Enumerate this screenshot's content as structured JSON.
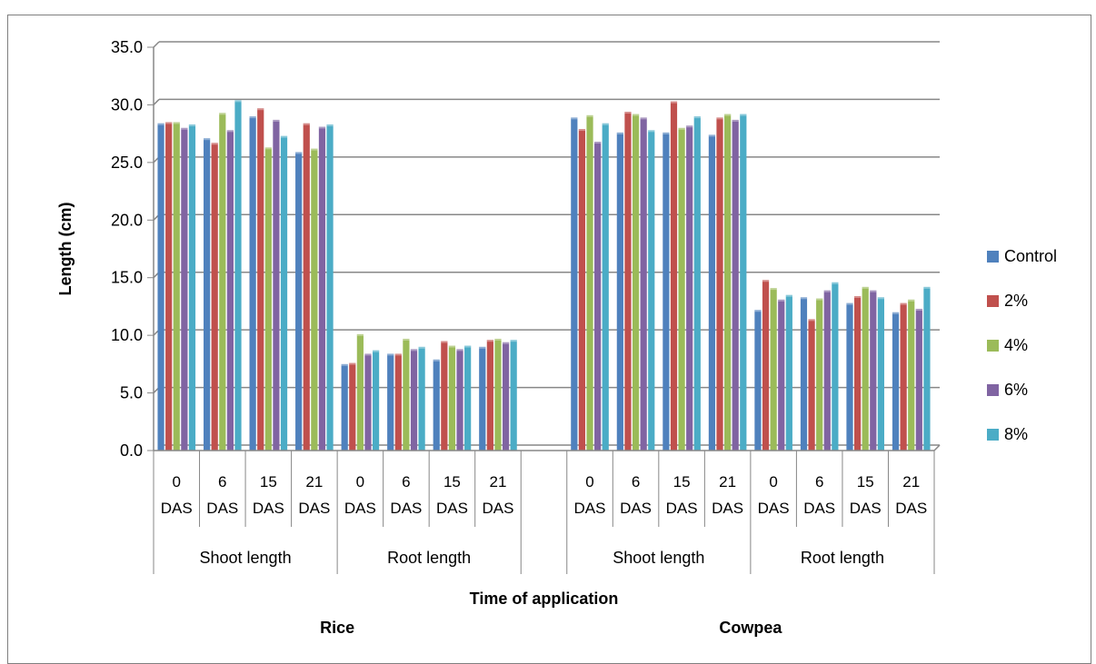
{
  "chart_data": {
    "type": "bar",
    "xlabel": "Time of application",
    "ylabel": "Length (cm)",
    "ylim": [
      0,
      35
    ],
    "ytick_step": 5,
    "ytick_labels": [
      "0.0",
      "5.0",
      "10.0",
      "15.0",
      "20.0",
      "25.0",
      "30.0",
      "35.0"
    ],
    "grid": true,
    "legend_position": "right",
    "crops": [
      "Rice",
      "Cowpea"
    ],
    "measures": [
      "Shoot length",
      "Root length"
    ],
    "times": [
      "0 DAS",
      "6 DAS",
      "15 DAS",
      "21 DAS"
    ],
    "categories": [
      "Rice / Shoot length / 0 DAS",
      "Rice / Shoot length / 6 DAS",
      "Rice / Shoot length / 15 DAS",
      "Rice / Shoot length / 21 DAS",
      "Rice / Root length / 0 DAS",
      "Rice / Root length / 6 DAS",
      "Rice / Root length / 15 DAS",
      "Rice / Root length / 21 DAS",
      "Cowpea / Shoot length / 0 DAS",
      "Cowpea / Shoot length / 6 DAS",
      "Cowpea / Shoot length / 15 DAS",
      "Cowpea / Shoot length / 21 DAS",
      "Cowpea / Root length / 0 DAS",
      "Cowpea / Root length / 6 DAS",
      "Cowpea / Root length / 15 DAS",
      "Cowpea / Root length / 21 DAS"
    ],
    "series": [
      {
        "name": "Control",
        "color": "#4f81bd",
        "values": [
          28.4,
          27.1,
          29.0,
          25.9,
          7.5,
          8.4,
          7.9,
          9.0,
          28.9,
          27.6,
          27.6,
          27.4,
          12.2,
          13.3,
          12.8,
          12.0
        ]
      },
      {
        "name": "2%",
        "color": "#c0504d",
        "values": [
          28.5,
          26.7,
          29.7,
          28.4,
          7.6,
          8.4,
          9.5,
          9.6,
          27.9,
          29.4,
          30.3,
          28.9,
          14.8,
          11.4,
          13.4,
          12.8
        ]
      },
      {
        "name": "4%",
        "color": "#9bbb59",
        "values": [
          28.5,
          29.3,
          26.3,
          26.2,
          10.1,
          9.7,
          9.1,
          9.7,
          29.1,
          29.2,
          28.0,
          29.2,
          14.1,
          13.2,
          14.2,
          13.1
        ]
      },
      {
        "name": "6%",
        "color": "#8064a2",
        "values": [
          28.0,
          27.8,
          28.7,
          28.1,
          8.4,
          8.8,
          8.8,
          9.4,
          26.8,
          28.9,
          28.2,
          28.7,
          13.1,
          13.9,
          13.9,
          12.3
        ]
      },
      {
        "name": "8%",
        "color": "#4bacc6",
        "values": [
          28.3,
          30.4,
          27.3,
          28.3,
          8.7,
          9.0,
          9.1,
          9.6,
          28.4,
          27.8,
          29.0,
          29.2,
          13.5,
          14.6,
          13.3,
          14.2
        ]
      }
    ]
  }
}
